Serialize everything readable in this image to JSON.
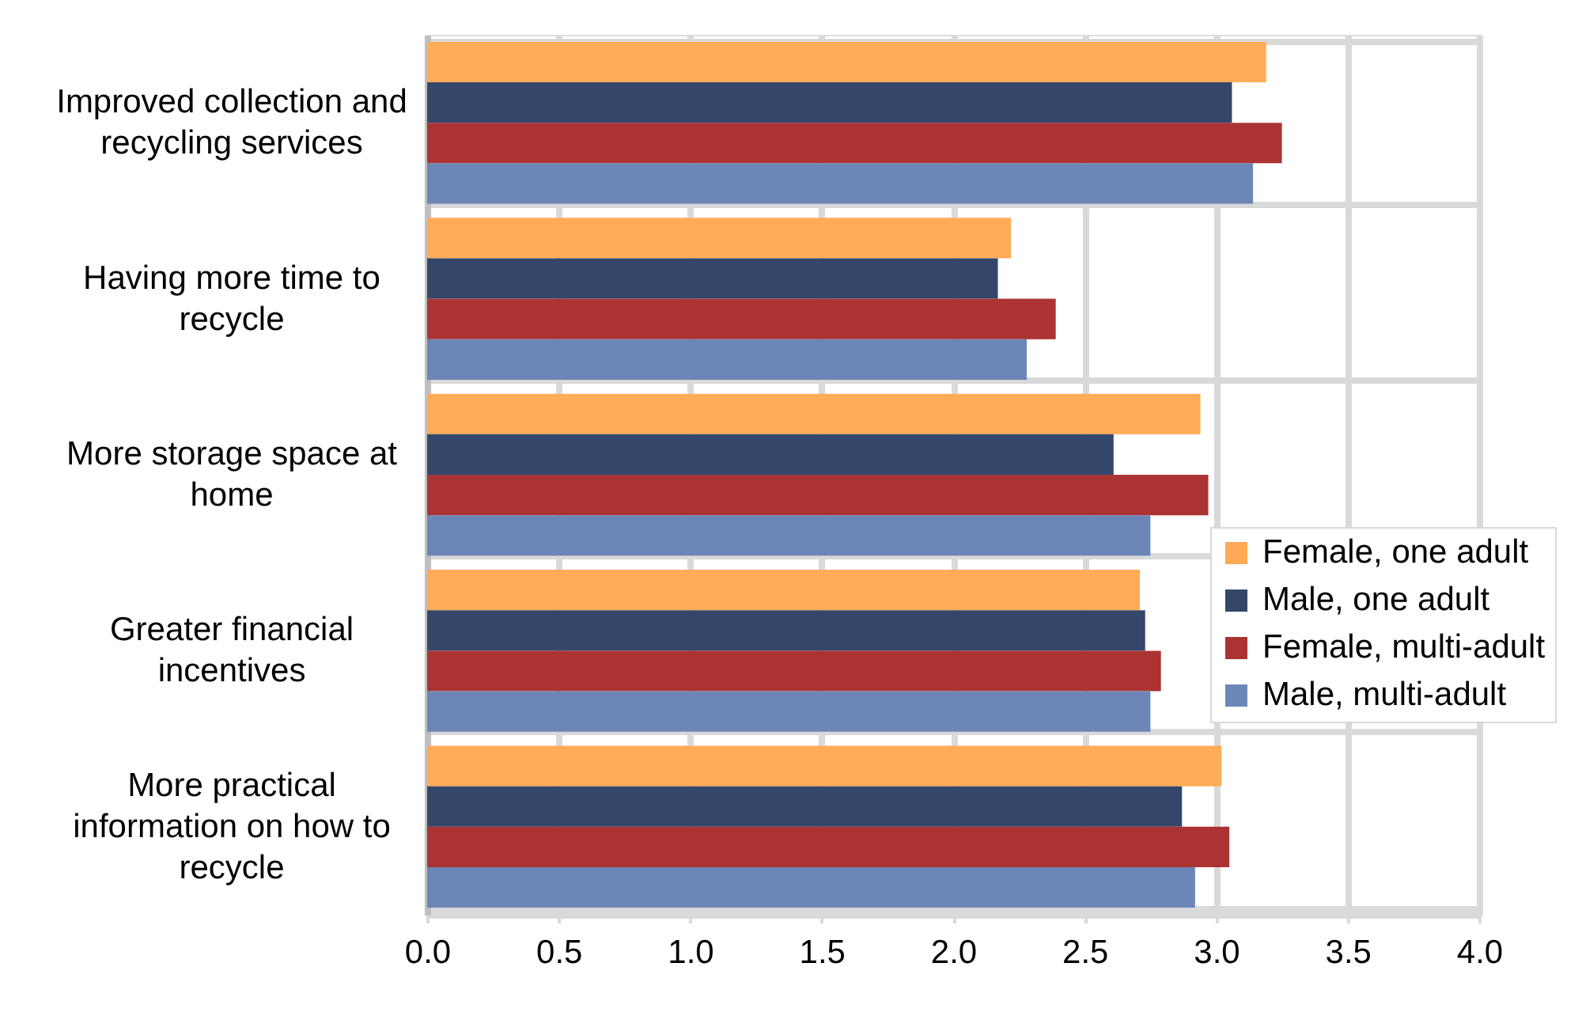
{
  "chart_data": {
    "type": "bar",
    "orientation": "horizontal",
    "categories": [
      "Improved collection and recycling services",
      "Having more time to recycle",
      "More storage space at home",
      "Greater financial incentives",
      "More practical information on how to recycle"
    ],
    "series": [
      {
        "name": "Female, one adult",
        "color": "#ffab57",
        "values": [
          3.19,
          2.22,
          2.94,
          2.71,
          3.02
        ]
      },
      {
        "name": "Male, one adult",
        "color": "#34476b",
        "values": [
          3.06,
          2.17,
          2.61,
          2.73,
          2.87
        ]
      },
      {
        "name": "Female, multi-adult",
        "color": "#ab3333",
        "values": [
          3.25,
          2.39,
          2.97,
          2.79,
          3.05
        ]
      },
      {
        "name": "Male, multi-adult",
        "color": "#6c87b7",
        "values": [
          3.14,
          2.28,
          2.75,
          2.75,
          2.92
        ]
      }
    ],
    "xlim": [
      0,
      4
    ],
    "xticks": [
      {
        "value": 0,
        "label": "0.0"
      },
      0.5,
      {
        "value": 1,
        "label": "1.0"
      },
      1.5,
      {
        "value": 2,
        "label": "2.0"
      },
      2.5,
      {
        "value": 3,
        "label": "3.0"
      },
      3.5,
      {
        "value": 4,
        "label": "4.0"
      }
    ],
    "grid": true,
    "legend": "right"
  }
}
